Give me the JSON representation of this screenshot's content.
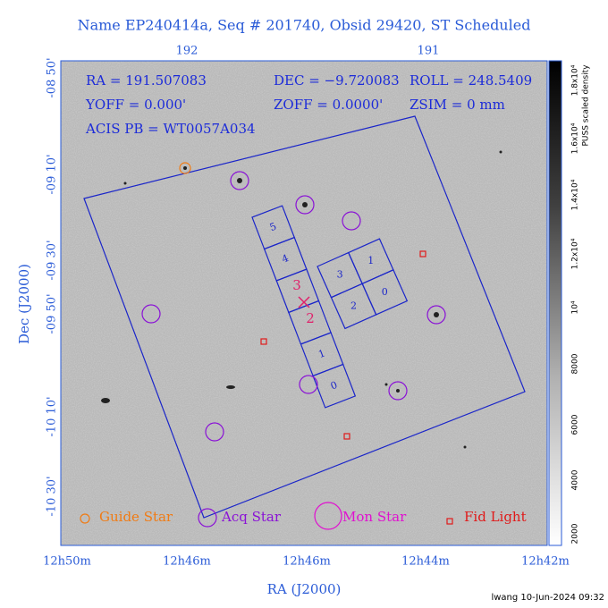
{
  "header": {
    "title": "Name EP240414a, Seq # 201740, Obsid 29420, ST Scheduled"
  },
  "info": {
    "ra": "RA = 191.507083",
    "dec": "DEC = −9.720083",
    "roll": "ROLL = 248.5409",
    "yoff": "YOFF =    0.000'",
    "zoff": "ZOFF =  0.0000'",
    "zsim": "ZSIM = 0 mm",
    "acis": "ACIS PB = WT0057A034"
  },
  "chips": [
    "5",
    "4",
    "3",
    "1",
    "2",
    "0",
    "1",
    "0"
  ],
  "aim_labels": [
    "3",
    "2"
  ],
  "legend": [
    "Guide Star",
    "Acq Star",
    "Mon Star",
    "Fid Light"
  ],
  "top_ticks": [
    "192",
    "191"
  ],
  "y_ticks": [
    "-08 50'",
    "-09 10'",
    "-09 30'",
    "-09 50'",
    "-10 10'",
    "-10 30'"
  ],
  "y_label": "Dec (J2000)",
  "x_ticks": [
    "12h50m",
    "12h46m",
    "12h46m",
    "12h44m",
    "12h42m"
  ],
  "x_label": "RA (J2000)",
  "colorbar": {
    "label": "PUSS scaled density",
    "ticks": [
      "2000",
      "4000",
      "6000",
      "8000",
      "10⁴",
      "1.2x10⁴",
      "1.4x10⁴",
      "1.6x10⁴",
      "1.8x10⁴"
    ]
  },
  "footer": "lwang 10-Jun-2024 09:32"
}
